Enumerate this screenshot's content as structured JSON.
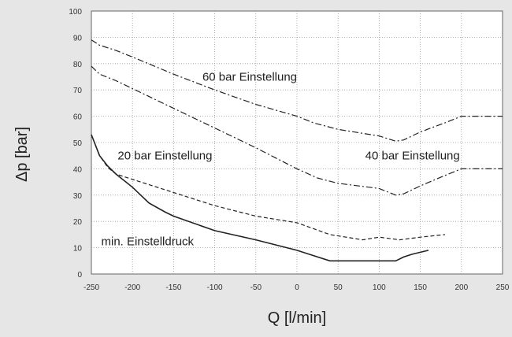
{
  "chart_data": {
    "type": "line",
    "xlabel": "Q [l/min]",
    "ylabel": "Δp [bar]",
    "xlim": [
      -250,
      250
    ],
    "ylim": [
      0,
      100
    ],
    "x_ticks": [
      -250,
      -200,
      -150,
      -100,
      -50,
      0,
      50,
      100,
      150,
      200,
      250
    ],
    "y_ticks": [
      0,
      10,
      20,
      30,
      40,
      50,
      60,
      70,
      80,
      90,
      100
    ],
    "grid": true,
    "colors": {
      "background": "#e6e6e6",
      "plot_area": "#ffffff",
      "lines": "#222222",
      "grid": "#9a9a9a"
    },
    "series": [
      {
        "name": "60 bar Einstellung",
        "dash": "dash-dot",
        "x": [
          -250,
          -240,
          -220,
          -200,
          -150,
          -100,
          -50,
          0,
          20,
          50,
          100,
          120,
          130,
          150,
          180,
          200,
          220,
          250
        ],
        "y": [
          89,
          87,
          85,
          82.5,
          76,
          70,
          64.5,
          60,
          57.5,
          55,
          52.5,
          50.5,
          51,
          54,
          57.5,
          60,
          60,
          60
        ]
      },
      {
        "name": "40 bar Einstellung",
        "dash": "dash-dot",
        "x": [
          -250,
          -240,
          -220,
          -200,
          -150,
          -100,
          -50,
          0,
          25,
          50,
          100,
          120,
          130,
          150,
          180,
          200,
          220,
          250
        ],
        "y": [
          79,
          76,
          73.5,
          70.5,
          63,
          55.5,
          48,
          40,
          36.5,
          34.5,
          32.5,
          30,
          30.5,
          33.5,
          37.5,
          40,
          40,
          40
        ]
      },
      {
        "name": "20 bar Einstellung",
        "dash": "dash",
        "x": [
          -250,
          -240,
          -230,
          -220,
          -200,
          -150,
          -100,
          -50,
          0,
          40,
          80,
          100,
          125,
          150,
          180
        ],
        "y": [
          53,
          45,
          40.5,
          38,
          36,
          31,
          26,
          22,
          19.5,
          15,
          13,
          14,
          13,
          14,
          15
        ]
      },
      {
        "name": "min. Einstelldruck",
        "dash": "solid",
        "x": [
          -250,
          -240,
          -230,
          -220,
          -200,
          -180,
          -160,
          -150,
          -100,
          -50,
          0,
          20,
          40,
          50,
          80,
          100,
          120,
          130,
          140,
          160
        ],
        "y": [
          53,
          45,
          41,
          38,
          33,
          27,
          23.5,
          22,
          16.5,
          13,
          9,
          7,
          5,
          5,
          5,
          5,
          5,
          6.5,
          7.5,
          9
        ]
      }
    ],
    "annotations": [
      {
        "text": "60 bar Einstellung",
        "x": -115,
        "y": 75
      },
      {
        "text": "40 bar Einstellung",
        "x": 83,
        "y": 45
      },
      {
        "text": "20 bar Einstellung",
        "x": -218,
        "y": 45
      },
      {
        "text": "min. Einstelldruck",
        "x": -238,
        "y": 12.5
      }
    ]
  }
}
